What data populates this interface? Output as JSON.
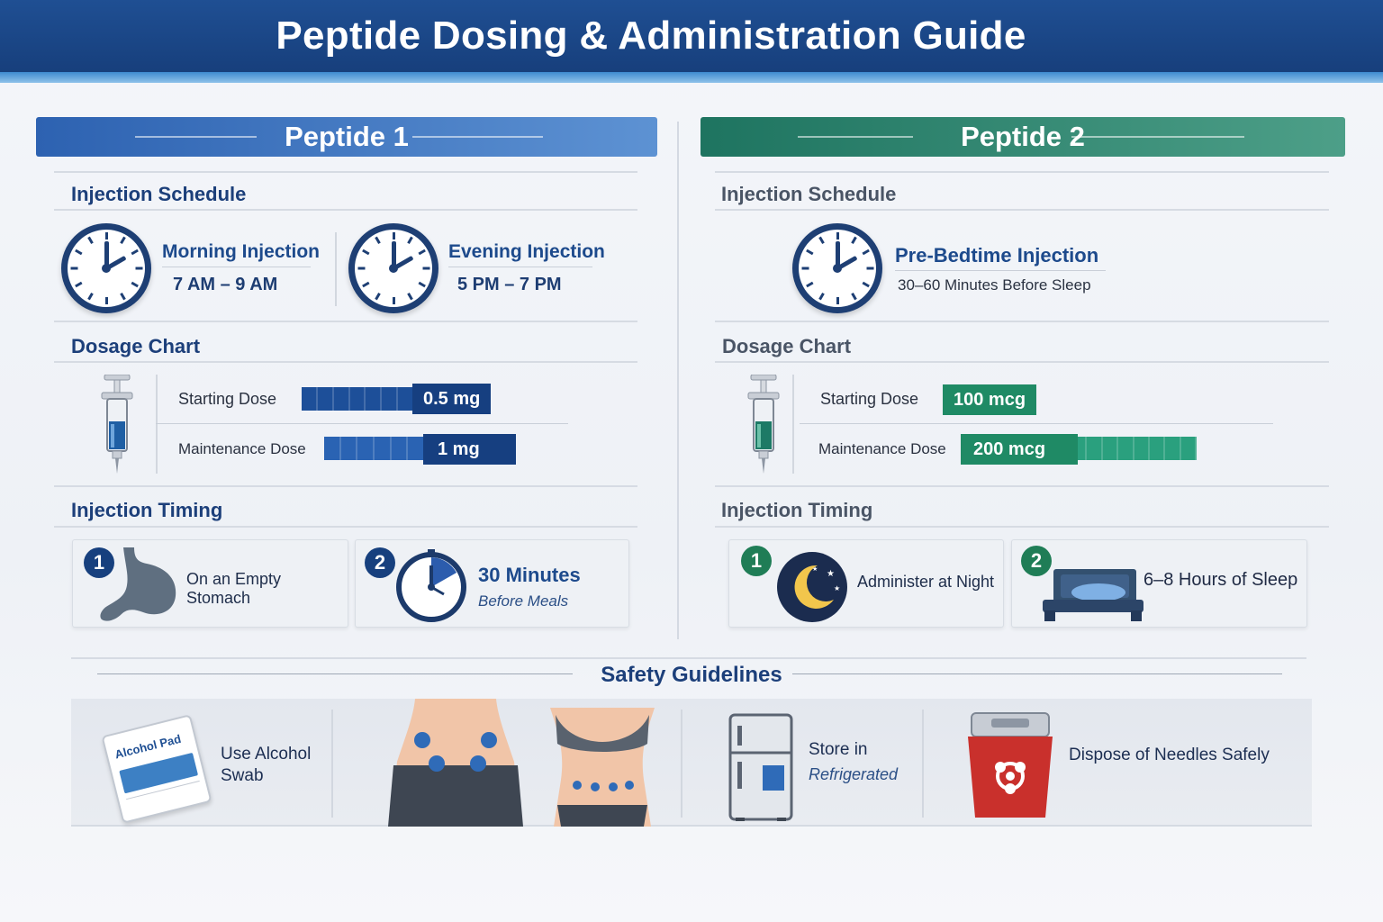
{
  "title": "Peptide Dosing & Administration Guide",
  "colors": {
    "banner": "#1f4f93",
    "peptide1_accent": "#2d62b1",
    "peptide2_accent": "#1e7460",
    "navy": "#17407e",
    "green": "#1f7d56"
  },
  "peptide1": {
    "heading": "Peptide 1",
    "schedule": {
      "title": "Injection Schedule",
      "items": [
        {
          "icon": "clock-icon",
          "label": "Morning Injection",
          "time": "7 AM – 9 AM"
        },
        {
          "icon": "clock-icon",
          "label": "Evening Injection",
          "time": "5 PM – 7 PM"
        }
      ]
    },
    "dosage": {
      "title": "Dosage Chart",
      "icon": "syringe-icon",
      "rows": [
        {
          "label": "Starting Dose",
          "value": "0.5 mg",
          "level": 0.5
        },
        {
          "label": "Maintenance Dose",
          "value": "1 mg",
          "level": 1.0
        }
      ]
    },
    "timing": {
      "title": "Injection Timing",
      "items": [
        {
          "number": "1",
          "icon": "stomach-icon",
          "text": "On an Empty Stomach"
        },
        {
          "number": "2",
          "icon": "timer-icon",
          "text": "30 Minutes",
          "subtext": "Before Meals"
        }
      ]
    }
  },
  "peptide2": {
    "heading": "Peptide 2",
    "schedule": {
      "title": "Injection Schedule",
      "items": [
        {
          "icon": "clock-icon",
          "label": "Pre-Bedtime Injection",
          "time": "30–60 Minutes Before Sleep"
        }
      ]
    },
    "dosage": {
      "title": "Dosage Chart",
      "icon": "syringe-icon",
      "rows": [
        {
          "label": "Starting Dose",
          "value": "100 mcg",
          "level": 0.5
        },
        {
          "label": "Maintenance Dose",
          "value": "200 mcg",
          "level": 1.0
        }
      ]
    },
    "timing": {
      "title": "Injection Timing",
      "items": [
        {
          "number": "1",
          "icon": "moon-icon",
          "text": "Administer at Night"
        },
        {
          "number": "2",
          "icon": "bed-icon",
          "text": "6–8 Hours of Sleep"
        }
      ]
    }
  },
  "safety": {
    "title": "Safety Guidelines",
    "items": [
      {
        "icon": "alcohol-swab-icon",
        "text": "Use Alcohol Swab",
        "pad_label": "Alcohol Pad"
      },
      {
        "icon": "injection-sites-icon",
        "text": ""
      },
      {
        "icon": "refrigerator-icon",
        "text": "Store in",
        "subtext": "Refrigerated"
      },
      {
        "icon": "sharps-container-icon",
        "text": "Dispose of Needles Safely"
      }
    ]
  }
}
